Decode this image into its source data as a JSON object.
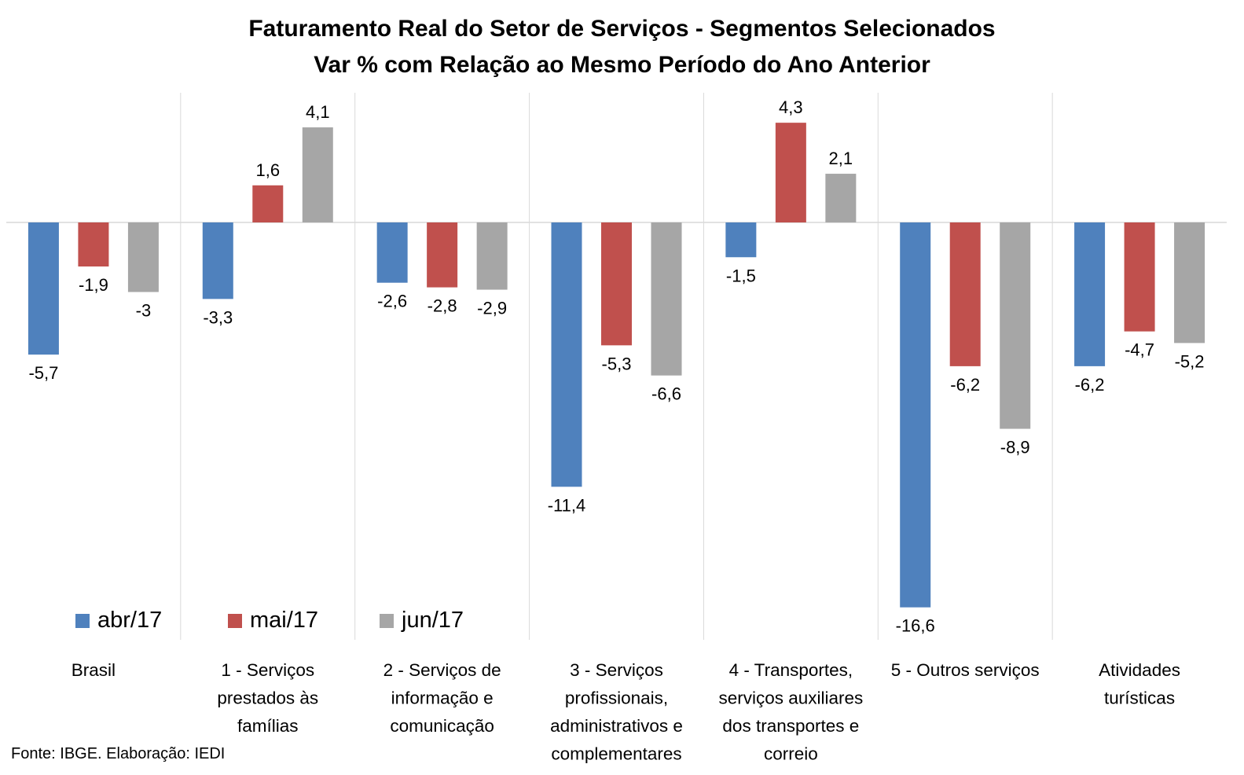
{
  "chart_data": {
    "type": "bar",
    "title": "Faturamento Real do Setor de Serviços - Segmentos Selecionados",
    "subtitle": "Var % com Relação ao Mesmo Período do Ano Anterior",
    "categories": [
      [
        "Brasil"
      ],
      [
        "1 - Serviços",
        "prestados às",
        "famílias"
      ],
      [
        "2 - Serviços de",
        "informação e",
        "comunicação"
      ],
      [
        "3 - Serviços",
        "profissionais,",
        "administrativos e",
        "complementares"
      ],
      [
        "4 - Transportes,",
        "serviços auxiliares",
        "dos transportes e",
        "correio"
      ],
      [
        "5 - Outros serviços"
      ],
      [
        "Atividades",
        "turísticas"
      ]
    ],
    "series": [
      {
        "name": "abr/17",
        "color": "#4f81bd",
        "values": [
          -5.7,
          -3.3,
          -2.6,
          -11.4,
          -1.5,
          -16.6,
          -6.2
        ],
        "labels": [
          "-5,7",
          "-3,3",
          "-2,6",
          "-11,4",
          "-1,5",
          "-16,6",
          "-6,2"
        ]
      },
      {
        "name": "mai/17",
        "color": "#c0504d",
        "values": [
          -1.9,
          1.6,
          -2.8,
          -5.3,
          4.3,
          -6.2,
          -4.7
        ],
        "labels": [
          "-1,9",
          "1,6",
          "-2,8",
          "-5,3",
          "4,3",
          "-6,2",
          "-4,7"
        ]
      },
      {
        "name": "jun/17",
        "color": "#a6a6a6",
        "values": [
          -3,
          4.1,
          -2.9,
          -6.6,
          2.1,
          -8.9,
          -5.2
        ],
        "labels": [
          "-3",
          "4,1",
          "-2,9",
          "-6,6",
          "2,1",
          "-8,9",
          "-5,2"
        ]
      }
    ],
    "ylim": [
      -18.0,
      5.6
    ],
    "grid": false,
    "legend_position": "bottom-left",
    "source": "Fonte: IBGE. Elaboração: IEDI"
  }
}
